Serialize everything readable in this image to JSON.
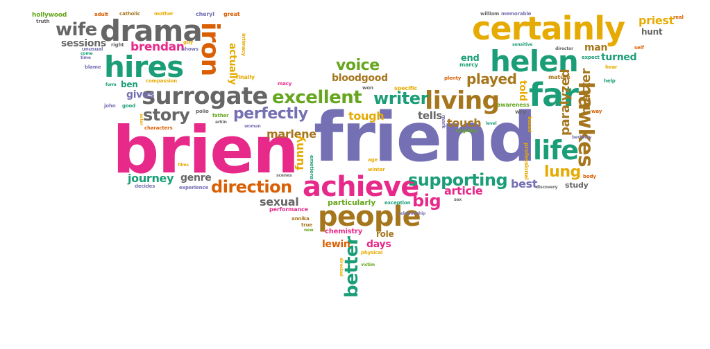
{
  "palette": {
    "pink": "#e7298a",
    "purple": "#7570b3",
    "green": "#1b9e77",
    "orange": "#d95f02",
    "lime": "#66a61e",
    "gold": "#e6ab02",
    "brown": "#a6761d",
    "gray": "#666666"
  },
  "words": [
    {
      "text": "brien",
      "color": "#e7298a"
    },
    {
      "text": "friend",
      "color": "#7570b3"
    },
    {
      "text": "achieve",
      "color": "#e7298a"
    },
    {
      "text": "people",
      "color": "#a6761d"
    },
    {
      "text": "surrogate",
      "color": "#666666"
    },
    {
      "text": "drama",
      "color": "#666666"
    },
    {
      "text": "hires",
      "color": "#1b9e77"
    },
    {
      "text": "iron",
      "color": "#d95f02"
    },
    {
      "text": "certainly",
      "color": "#e6ab02"
    },
    {
      "text": "helen",
      "color": "#1b9e77"
    },
    {
      "text": "far",
      "color": "#1b9e77"
    },
    {
      "text": "life",
      "color": "#1b9e77"
    },
    {
      "text": "living",
      "color": "#a6761d"
    },
    {
      "text": "hawkes",
      "color": "#a6761d"
    },
    {
      "text": "excellent",
      "color": "#66a61e"
    },
    {
      "text": "direction",
      "color": "#d95f02"
    },
    {
      "text": "supporting",
      "color": "#1b9e77"
    },
    {
      "text": "perfectly",
      "color": "#7570b3"
    },
    {
      "text": "writer",
      "color": "#1b9e77"
    },
    {
      "text": "voice",
      "color": "#66a61e"
    },
    {
      "text": "wife",
      "color": "#666666"
    },
    {
      "text": "story",
      "color": "#666666"
    },
    {
      "text": "better",
      "color": "#1b9e77"
    },
    {
      "text": "big",
      "color": "#e7298a"
    },
    {
      "text": "brendan",
      "color": "#e7298a"
    },
    {
      "text": "played",
      "color": "#a6761d"
    },
    {
      "text": "paralyzed",
      "color": "#a6761d"
    },
    {
      "text": "lung",
      "color": "#e6ab02"
    },
    {
      "text": "matter",
      "color": "#a6761d"
    },
    {
      "text": "sessions",
      "color": "#666666"
    },
    {
      "text": "journey",
      "color": "#1b9e77"
    },
    {
      "text": "marlene",
      "color": "#a6761d"
    },
    {
      "text": "sexual",
      "color": "#666666"
    },
    {
      "text": "touch",
      "color": "#a6761d"
    },
    {
      "text": "tough",
      "color": "#e6ab02"
    },
    {
      "text": "article",
      "color": "#e7298a"
    },
    {
      "text": "best",
      "color": "#7570b3"
    },
    {
      "text": "funny",
      "color": "#e6ab02"
    },
    {
      "text": "actually",
      "color": "#e6ab02"
    },
    {
      "text": "told",
      "color": "#e6ab02"
    },
    {
      "text": "gives",
      "color": "#7570b3"
    },
    {
      "text": "tells",
      "color": "#666666"
    },
    {
      "text": "genre",
      "color": "#666666"
    },
    {
      "text": "days",
      "color": "#e7298a"
    },
    {
      "text": "lewin",
      "color": "#d95f02"
    },
    {
      "text": "priest",
      "color": "#e6ab02"
    },
    {
      "text": "man",
      "color": "#a6761d"
    },
    {
      "text": "turned",
      "color": "#1b9e77"
    },
    {
      "text": "end",
      "color": "#1b9e77"
    },
    {
      "text": "bloodgood",
      "color": "#a6761d"
    },
    {
      "text": "ben",
      "color": "#1b9e77"
    },
    {
      "text": "particularly",
      "color": "#66a61e"
    },
    {
      "text": "role",
      "color": "#a6761d"
    },
    {
      "text": "hunt",
      "color": "#666666"
    },
    {
      "text": "study",
      "color": "#666666"
    },
    {
      "text": "chemistry",
      "color": "#e7298a"
    },
    {
      "text": "hollywood",
      "color": "#66a61e"
    },
    {
      "text": "truth",
      "color": "#666666"
    },
    {
      "text": "adult",
      "color": "#d95f02"
    },
    {
      "text": "catholic",
      "color": "#a6761d"
    },
    {
      "text": "mother",
      "color": "#e6ab02"
    },
    {
      "text": "cheryl",
      "color": "#7570b3"
    },
    {
      "text": "great",
      "color": "#d95f02"
    },
    {
      "text": "william",
      "color": "#666666"
    },
    {
      "text": "memorable",
      "color": "#7570b3"
    },
    {
      "text": "real",
      "color": "#d95f02"
    },
    {
      "text": "guy",
      "color": "#e6ab02"
    },
    {
      "text": "shows",
      "color": "#7570b3"
    },
    {
      "text": "intimacy",
      "color": "#e6ab02"
    },
    {
      "text": "right",
      "color": "#666666"
    },
    {
      "text": "unusual",
      "color": "#7570b3"
    },
    {
      "text": "come",
      "color": "#1b9e77"
    },
    {
      "text": "time",
      "color": "#7570b3"
    },
    {
      "text": "blame",
      "color": "#7570b3"
    },
    {
      "text": "finally",
      "color": "#e6ab02"
    },
    {
      "text": "compassion",
      "color": "#e6ab02"
    },
    {
      "text": "macy",
      "color": "#e7298a"
    },
    {
      "text": "won",
      "color": "#666666"
    },
    {
      "text": "specific",
      "color": "#e6ab02"
    },
    {
      "text": "plenty",
      "color": "#d95f02"
    },
    {
      "text": "marcy",
      "color": "#1b9e77"
    },
    {
      "text": "sensitive",
      "color": "#1b9e77"
    },
    {
      "text": "director",
      "color": "#666666"
    },
    {
      "text": "self",
      "color": "#d95f02"
    },
    {
      "text": "expect",
      "color": "#1b9e77"
    },
    {
      "text": "hear",
      "color": "#e6ab02"
    },
    {
      "text": "mature",
      "color": "#a6761d"
    },
    {
      "text": "help",
      "color": "#1b9e77"
    },
    {
      "text": "awareness",
      "color": "#66a61e"
    },
    {
      "text": "wry",
      "color": "#666666"
    },
    {
      "text": "based",
      "color": "#e6ab02"
    },
    {
      "text": "way",
      "color": "#d95f02"
    },
    {
      "text": "berkeley",
      "color": "#7570b3"
    },
    {
      "text": "form",
      "color": "#1b9e77"
    },
    {
      "text": "john",
      "color": "#7570b3"
    },
    {
      "text": "good",
      "color": "#1b9e77"
    },
    {
      "text": "actor",
      "color": "#e6ab02"
    },
    {
      "text": "characters",
      "color": "#d95f02"
    },
    {
      "text": "polio",
      "color": "#666666"
    },
    {
      "text": "father",
      "color": "#66a61e"
    },
    {
      "text": "arkin",
      "color": "#666666"
    },
    {
      "text": "woman",
      "color": "#7570b3"
    },
    {
      "text": "mark",
      "color": "#7570b3"
    },
    {
      "text": "virginity",
      "color": "#66a61e"
    },
    {
      "text": "level",
      "color": "#1b9e77"
    },
    {
      "text": "professional",
      "color": "#e6ab02"
    },
    {
      "text": "body",
      "color": "#d95f02"
    },
    {
      "text": "films",
      "color": "#e6ab02"
    },
    {
      "text": "emotions",
      "color": "#1b9e77"
    },
    {
      "text": "age",
      "color": "#e6ab02"
    },
    {
      "text": "winter",
      "color": "#e6ab02"
    },
    {
      "text": "scenes",
      "color": "#666666"
    },
    {
      "text": "decides",
      "color": "#7570b3"
    },
    {
      "text": "experience",
      "color": "#7570b3"
    },
    {
      "text": "performance",
      "color": "#e7298a"
    },
    {
      "text": "exception",
      "color": "#1b9e77"
    },
    {
      "text": "sex",
      "color": "#666666"
    },
    {
      "text": "discovery",
      "color": "#666666"
    },
    {
      "text": "annika",
      "color": "#a6761d"
    },
    {
      "text": "true",
      "color": "#a6761d"
    },
    {
      "text": "new",
      "color": "#66a61e"
    },
    {
      "text": "relationship",
      "color": "#7570b3"
    },
    {
      "text": "physical",
      "color": "#e6ab02"
    },
    {
      "text": "directed",
      "color": "#e6ab02"
    },
    {
      "text": "victim",
      "color": "#66a61e"
    }
  ]
}
